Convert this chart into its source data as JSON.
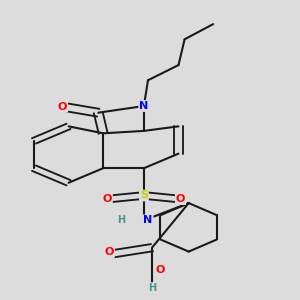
{
  "background_color": "#dcdcdc",
  "bond_color": "#1a1a1a",
  "atom_colors": {
    "O": "#ff0000",
    "N": "#0000ff",
    "S": "#cccc00",
    "H_label": "#4a9090"
  },
  "figsize": [
    3.0,
    3.0
  ],
  "dpi": 100
}
